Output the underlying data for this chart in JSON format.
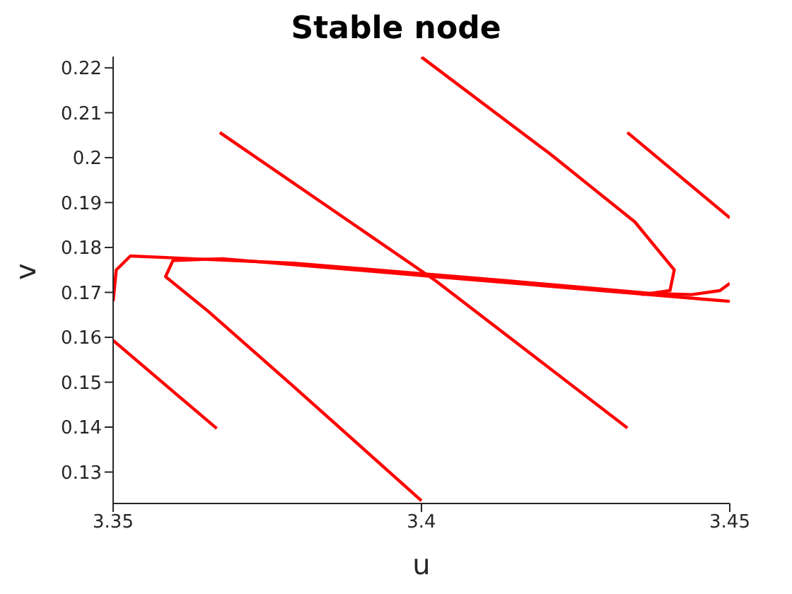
{
  "chart_data": {
    "type": "line",
    "title": "Stable node",
    "xlabel": "u",
    "ylabel": "v",
    "xlim": [
      3.35,
      3.45
    ],
    "xticks": [
      3.35,
      3.4,
      3.45
    ],
    "ylim": [
      0.123,
      0.2225
    ],
    "yticks": [
      0.13,
      0.14,
      0.15,
      0.16,
      0.17,
      0.18,
      0.19,
      0.2,
      0.21,
      0.22
    ],
    "grid": false,
    "legend": false,
    "marker": "none",
    "line_style": "solid",
    "series": [
      {
        "color": "#ff0000",
        "x": [
          3.35,
          3.3505,
          3.3528,
          3.3793,
          3.4138,
          3.4369,
          3.4438,
          3.4484,
          3.45
        ],
        "values": [
          0.168,
          0.175,
          0.1781,
          0.1765,
          0.1726,
          0.1698,
          0.1695,
          0.1704,
          0.172
        ]
      },
      {
        "color": "#ff0000",
        "x": [
          3.4,
          3.3793,
          3.3654,
          3.3585,
          3.3597,
          3.3677,
          3.4023,
          3.45
        ],
        "values": [
          0.1236,
          0.149,
          0.1658,
          0.1735,
          0.1771,
          0.1775,
          0.1735,
          0.168
        ]
      },
      {
        "color": "#ff0000",
        "x": [
          3.4,
          3.4207,
          3.4346,
          3.441,
          3.4403,
          3.4357
        ],
        "values": [
          0.2224,
          0.201,
          0.1857,
          0.175,
          0.1704,
          0.1695
        ]
      },
      {
        "color": "#ff0000",
        "x": [
          3.4334,
          3.45
        ],
        "values": [
          0.2056,
          0.1866
        ]
      },
      {
        "color": "#ff0000",
        "x": [
          3.3673,
          3.4023,
          3.4334
        ],
        "values": [
          0.2056,
          0.1726,
          0.1398
        ]
      },
      {
        "color": "#ff0000",
        "x": [
          3.35,
          3.3668
        ],
        "values": [
          0.1593,
          0.1397
        ]
      }
    ]
  }
}
